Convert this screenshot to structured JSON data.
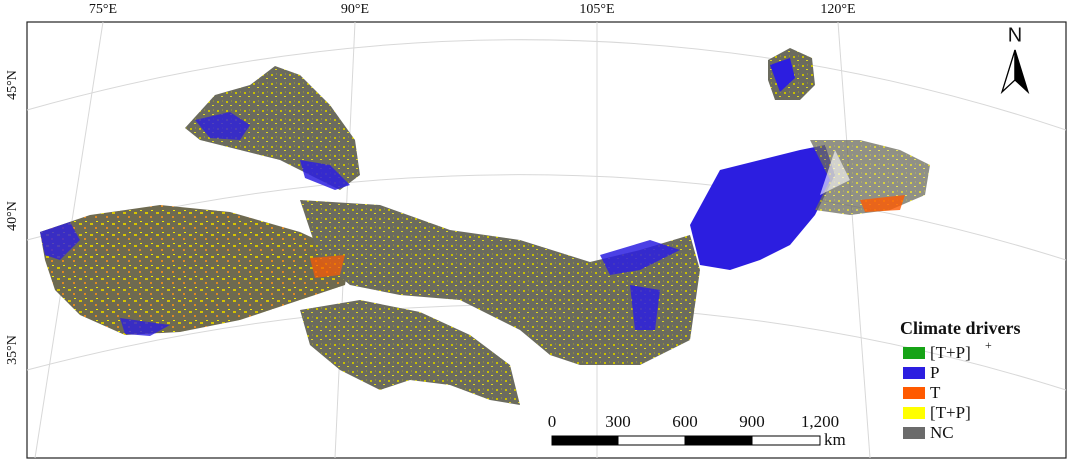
{
  "map": {
    "longitude_labels": [
      "75°E",
      "90°E",
      "105°E",
      "120°E"
    ],
    "latitude_labels": [
      "45°N",
      "40°N",
      "35°N"
    ],
    "north_arrow": "N",
    "legend": {
      "title": "Climate drivers",
      "items": [
        {
          "label": "[T+P]",
          "superscript": "+",
          "color": "#16a316"
        },
        {
          "label": "P",
          "color": "#2c1ee0"
        },
        {
          "label": "T",
          "color": "#ff5a00"
        },
        {
          "label": "[T+P]",
          "color": "#ffff00"
        },
        {
          "label": "NC",
          "color": "#6b6b6b"
        }
      ]
    },
    "scale_bar": {
      "labels": [
        "0",
        "300",
        "600",
        "900",
        "1,200"
      ],
      "unit": "km"
    }
  }
}
